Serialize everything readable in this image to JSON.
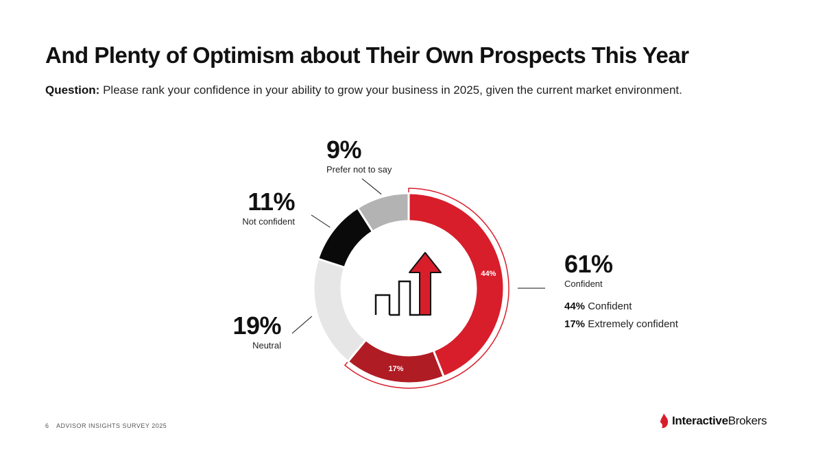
{
  "page": {
    "title": "And Plenty of Optimism about Their Own Prospects This Year",
    "question_label": "Question:",
    "question_text": "Please rank your confidence in your ability to grow your business in 2025, given the current market environment.",
    "footer_page": "6",
    "footer_text": "ADVISOR INSIGHTS SURVEY 2025",
    "logo_bold": "Interactive",
    "logo_regular": "Brokers"
  },
  "callouts": {
    "prefer": {
      "pct": "9%",
      "label": "Prefer not to say"
    },
    "not_confident": {
      "pct": "11%",
      "label": "Not confident"
    },
    "neutral": {
      "pct": "19%",
      "label": "Neutral"
    },
    "confident": {
      "pct": "61%",
      "label": "Confident"
    }
  },
  "breakdown": [
    {
      "pct": "44%",
      "text": "Confident"
    },
    {
      "pct": "17%",
      "text": "Extremely confident"
    }
  ],
  "chart_data": {
    "type": "pie",
    "variant": "donut",
    "categories": [
      "Confident",
      "Extremely confident",
      "Neutral",
      "Not confident",
      "Prefer not to say"
    ],
    "values": [
      44,
      17,
      19,
      11,
      9
    ],
    "colors": [
      "#d81e2b",
      "#b01c24",
      "#e6e6e6",
      "#0a0a0a",
      "#b3b3b3"
    ],
    "data_labels": [
      "44%",
      "17%",
      "",
      "",
      ""
    ],
    "group_total": {
      "label": "Confident",
      "value": 61,
      "members": [
        "Confident",
        "Extremely confident"
      ]
    },
    "legend": "none"
  },
  "colors": {
    "accent": "#d81e2b",
    "accent_dark": "#b01c24"
  }
}
